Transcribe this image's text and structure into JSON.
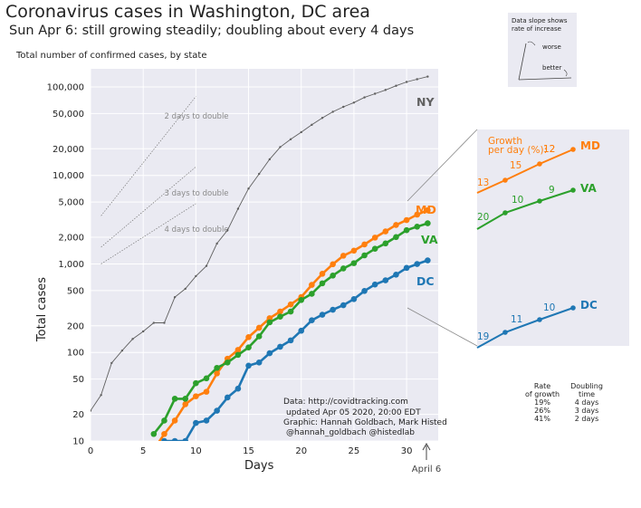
{
  "header": {
    "title": "Coronavirus cases in Washington, DC area",
    "subtitle": "Sun Apr 6: still growing steadily; doubling about every 4 days",
    "axis_caption": "Total number of confirmed cases, by state"
  },
  "chart_data": [
    {
      "type": "line",
      "xlabel": "Days",
      "ylabel": "Total cases",
      "yscale": "log",
      "xlim": [
        0,
        33
      ],
      "ylim": [
        10,
        160000
      ],
      "x_ticks": [
        0,
        5,
        10,
        15,
        20,
        25,
        30
      ],
      "y_ticks": [
        10,
        20,
        50,
        100,
        200,
        500,
        1000,
        2000,
        5000,
        10000,
        20000,
        50000,
        100000
      ],
      "y_tick_labels": [
        "10",
        "20",
        "50",
        "100",
        "200",
        "500",
        "1,000",
        "2,000",
        "5,000",
        "10,000",
        "20,000",
        "50,000",
        "100,000"
      ],
      "grid": true,
      "series": [
        {
          "name": "NY",
          "color": "#606060",
          "x": [
            0,
            1,
            2,
            3,
            4,
            5,
            6,
            7,
            8,
            9,
            10,
            11,
            12,
            13,
            14,
            15,
            16,
            17,
            18,
            19,
            20,
            21,
            22,
            23,
            24,
            25,
            26,
            27,
            28,
            29,
            30,
            31,
            32
          ],
          "y": [
            22,
            33,
            76,
            105,
            142,
            173,
            216,
            216,
            421,
            524,
            729,
            950,
            1700,
            2400,
            4200,
            7100,
            10400,
            15200,
            20900,
            25600,
            30800,
            37300,
            44600,
            52300,
            59500,
            66500,
            76000,
            83700,
            92300,
            102900,
            113700,
            122000,
            130700
          ]
        },
        {
          "name": "MD",
          "color": "#ff7f0e",
          "x": [
            6,
            7,
            8,
            9,
            10,
            11,
            12,
            13,
            14,
            15,
            16,
            17,
            18,
            19,
            20,
            21,
            22,
            23,
            24,
            25,
            26,
            27,
            28,
            29,
            30,
            31,
            32
          ],
          "y": [
            8,
            12,
            17,
            26,
            32,
            36,
            58,
            85,
            107,
            149,
            190,
            244,
            290,
            349,
            423,
            580,
            774,
            992,
            1239,
            1413,
            1660,
            1985,
            2331,
            2758,
            3125,
            3609,
            4045
          ]
        },
        {
          "name": "VA",
          "color": "#2ca02c",
          "x": [
            6,
            7,
            8,
            9,
            10,
            11,
            12,
            13,
            14,
            15,
            16,
            17,
            18,
            19,
            20,
            21,
            22,
            23,
            24,
            25,
            26,
            27,
            28,
            29,
            30,
            31,
            32
          ],
          "y": [
            12,
            17,
            30,
            30,
            45,
            51,
            67,
            77,
            94,
            114,
            152,
            219,
            254,
            290,
            391,
            460,
            604,
            739,
            890,
            1020,
            1250,
            1484,
            1706,
            2012,
            2407,
            2637,
            2878
          ]
        },
        {
          "name": "DC",
          "color": "#1f77b4",
          "x": [
            7,
            8,
            9,
            10,
            11,
            12,
            13,
            14,
            15,
            16,
            17,
            18,
            19,
            20,
            21,
            22,
            23,
            24,
            25,
            26,
            27,
            28,
            29,
            30,
            31,
            32
          ],
          "y": [
            10,
            10,
            10,
            16,
            17,
            22,
            31,
            39,
            71,
            77,
            98,
            116,
            137,
            176,
            231,
            267,
            304,
            342,
            401,
            495,
            586,
            653,
            757,
            902,
            998,
            1097
          ]
        }
      ],
      "doubling_guides": [
        {
          "label": "2 days to double",
          "x0": 1,
          "y0": 3500,
          "x1": 10,
          "y1": 78000
        },
        {
          "label": "3 days to double",
          "x0": 1,
          "y0": 1550,
          "x1": 10,
          "y1": 12500
        },
        {
          "label": "4 days to double",
          "x0": 1,
          "y0": 1000,
          "x1": 10,
          "y1": 4800
        }
      ],
      "annotations": {
        "source": [
          "Data: http://covidtracking.com",
          "updated Apr 05 2020, 20:00 EDT",
          "Graphic: Hannah Goldbach, Mark Histed",
          "@hannah_goldbach @histedlab"
        ],
        "arrow_label": "April 6"
      }
    },
    {
      "type": "line",
      "title": "Growth per day (%)",
      "series": [
        {
          "name": "MD",
          "color": "#ff7f0e",
          "x": [
            29,
            30,
            31,
            32
          ],
          "y": [
            2758,
            3125,
            3609,
            4045
          ],
          "growth_labels": [
            "13",
            "15",
            "",
            "12"
          ]
        },
        {
          "name": "VA",
          "color": "#2ca02c",
          "x": [
            29,
            30,
            31,
            32
          ],
          "y": [
            2012,
            2407,
            2637,
            2878
          ],
          "growth_labels": [
            "20",
            "10",
            "9",
            ""
          ]
        },
        {
          "name": "DC",
          "color": "#1f77b4",
          "x": [
            29,
            30,
            31,
            32
          ],
          "y": [
            757,
            902,
            998,
            1097
          ],
          "growth_labels": [
            "19",
            "11",
            "10",
            ""
          ]
        }
      ]
    }
  ],
  "slope_legend": {
    "title_line1": "Data slope shows",
    "title_line2": "rate of increase",
    "worse": "worse",
    "better": "better"
  },
  "growth_table": {
    "headers": [
      [
        "Rate",
        "of growth"
      ],
      [
        "Doubling",
        "time"
      ]
    ],
    "rows": [
      [
        "19%",
        "4 days"
      ],
      [
        "26%",
        "3 days"
      ],
      [
        "41%",
        "2 days"
      ]
    ]
  }
}
